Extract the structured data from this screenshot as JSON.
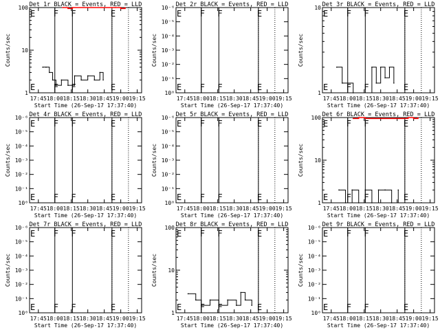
{
  "figure": {
    "time_axis_label": "Start Time (26-Sep-17 17:37:40)",
    "time_ticks": [
      "17:45",
      "18:00",
      "18:15",
      "18:30",
      "18:45",
      "19:00",
      "19:15"
    ],
    "y_axis_label": "Counts/sec",
    "markers": [
      {
        "label": "E",
        "time": "17:38"
      },
      {
        "label": "F",
        "time": "18:00"
      },
      {
        "label": "F",
        "time": "18:16"
      },
      {
        "label": "E",
        "time": "18:52"
      }
    ],
    "colors": {
      "events": "#000000",
      "lld": "#ff0000"
    }
  },
  "chart_data": [
    {
      "type": "line",
      "title": "Det 1r BLACK = Events, RED = LLD",
      "xlabel": "Start Time (26-Sep-17 17:37:40)",
      "ylabel": "Counts/sec",
      "yscale": "log",
      "ylim": [
        1,
        100
      ],
      "yticks": [
        "1",
        "10",
        "100"
      ],
      "grid": "dotted vertical lines at 18:52 and 19:07",
      "series": [
        {
          "color": "#000000",
          "x": [
            "17:49",
            "17:52",
            "17:55",
            "17:58",
            "18:01",
            "18:06",
            "18:12",
            "18:18",
            "18:24",
            "18:30",
            "18:36",
            "18:41",
            "18:44"
          ],
          "y": [
            4,
            4,
            3,
            2,
            1.5,
            2,
            1.5,
            2.5,
            2,
            2.5,
            2,
            3,
            2
          ]
        },
        {
          "color": "#ff0000",
          "x": [
            "18:07",
            "18:12",
            "18:16",
            "18:55",
            "19:00",
            "19:04"
          ],
          "y": [
            100,
            95,
            100,
            100,
            95,
            100
          ]
        }
      ]
    },
    {
      "type": "line",
      "title": "Det 2r BLACK = Events, RED = LLD",
      "xlabel": "Start Time (26-Sep-17 17:37:40)",
      "ylabel": "Counts/sec",
      "yscale": "log",
      "ylim": [
        1,
        1e-06
      ],
      "yticks": [
        "10⁰",
        "10⁻¹",
        "10⁻²",
        "10⁻³",
        "10⁻⁴",
        "10⁻⁵",
        "10⁻⁶"
      ],
      "grid": "dotted vertical lines at 18:52 and 19:07",
      "series": []
    },
    {
      "type": "line",
      "title": "Det 3r BLACK = Events, RED = LLD",
      "xlabel": "Start Time (26-Sep-17 17:37:40)",
      "ylabel": "Counts/sec",
      "yscale": "log",
      "ylim": [
        1,
        10
      ],
      "yticks": [
        "1",
        "10"
      ],
      "grid": "dotted vertical lines at 18:52 and 19:07",
      "series": [
        {
          "color": "#000000",
          "x": [
            "17:50",
            "17:55",
            "18:05",
            "18:22",
            "18:26",
            "18:30",
            "18:34",
            "18:38",
            "18:42"
          ],
          "y": [
            2,
            1.3,
            1,
            2,
            1.3,
            2,
            1.5,
            2,
            1.3
          ]
        }
      ]
    },
    {
      "type": "line",
      "title": "Det 4r BLACK = Events, RED = LLD",
      "xlabel": "Start Time (26-Sep-17 17:37:40)",
      "ylabel": "Counts/sec",
      "yscale": "log",
      "ylim": [
        1,
        1e-06
      ],
      "yticks": [
        "10⁰",
        "10⁻¹",
        "10⁻²",
        "10⁻³",
        "10⁻⁴",
        "10⁻⁵",
        "10⁻⁶"
      ],
      "grid": "dotted vertical lines at 18:52 and 19:07",
      "series": []
    },
    {
      "type": "line",
      "title": "Det 5r BLACK = Events, RED = LLD",
      "xlabel": "Start Time (26-Sep-17 17:37:40)",
      "ylabel": "Counts/sec",
      "yscale": "log",
      "ylim": [
        1,
        1e-06
      ],
      "yticks": [
        "10⁰",
        "10⁻¹",
        "10⁻²",
        "10⁻³",
        "10⁻⁴",
        "10⁻⁵",
        "10⁻⁶"
      ],
      "grid": "dotted vertical lines at 18:52 and 19:07",
      "series": []
    },
    {
      "type": "line",
      "title": "Det 6r BLACK = Events, RED = LLD",
      "xlabel": "Start Time (26-Sep-17 17:37:40)",
      "ylabel": "Counts/sec",
      "yscale": "log",
      "ylim": [
        1,
        100
      ],
      "yticks": [
        "1",
        "10",
        "100"
      ],
      "grid": "dotted vertical lines at 18:52 and 19:07",
      "series": [
        {
          "color": "#000000",
          "x": [
            "17:52",
            "17:58",
            "18:04",
            "18:10",
            "18:16",
            "18:22",
            "18:28",
            "18:34",
            "18:40",
            "18:46"
          ],
          "y": [
            2,
            1,
            2,
            1,
            2,
            1,
            2,
            2,
            1,
            2
          ]
        },
        {
          "color": "#ff0000",
          "x": [
            "18:05",
            "18:10",
            "18:16",
            "18:55",
            "19:00",
            "19:04"
          ],
          "y": [
            95,
            100,
            95,
            100,
            95,
            100
          ]
        }
      ]
    },
    {
      "type": "line",
      "title": "Det 7r BLACK = Events, RED = LLD",
      "xlabel": "Start Time (26-Sep-17 17:37:40)",
      "ylabel": "Counts/sec",
      "yscale": "log",
      "ylim": [
        1,
        1e-06
      ],
      "yticks": [
        "10⁰",
        "10⁻¹",
        "10⁻²",
        "10⁻³",
        "10⁻⁴",
        "10⁻⁵",
        "10⁻⁶"
      ],
      "grid": "dotted vertical lines at 18:52 and 19:07",
      "series": []
    },
    {
      "type": "line",
      "title": "Det 8r BLACK = Events, RED = LLD",
      "xlabel": "Start Time (26-Sep-17 17:37:40)",
      "ylabel": "Counts/sec",
      "yscale": "log",
      "ylim": [
        1,
        100
      ],
      "yticks": [
        "1",
        "10",
        "100"
      ],
      "grid": "dotted vertical lines at 18:52 and 19:07",
      "series": [
        {
          "color": "#000000",
          "x": [
            "17:48",
            "17:55",
            "18:00",
            "18:08",
            "18:16",
            "18:24",
            "18:32",
            "18:36",
            "18:40",
            "18:46"
          ],
          "y": [
            2.8,
            2,
            1.5,
            2,
            1.5,
            2,
            1.5,
            3,
            2,
            1.5
          ]
        }
      ]
    },
    {
      "type": "line",
      "title": "Det 9r BLACK = Events, RED = LLD",
      "xlabel": "Start Time (26-Sep-17 17:37:40)",
      "ylabel": "Counts/sec",
      "yscale": "log",
      "ylim": [
        1,
        1e-06
      ],
      "yticks": [
        "10⁰",
        "10⁻¹",
        "10⁻²",
        "10⁻³",
        "10⁻⁴",
        "10⁻⁵",
        "10⁻⁶"
      ],
      "grid": "dotted vertical lines at 18:52 and 19:07",
      "series": []
    }
  ]
}
